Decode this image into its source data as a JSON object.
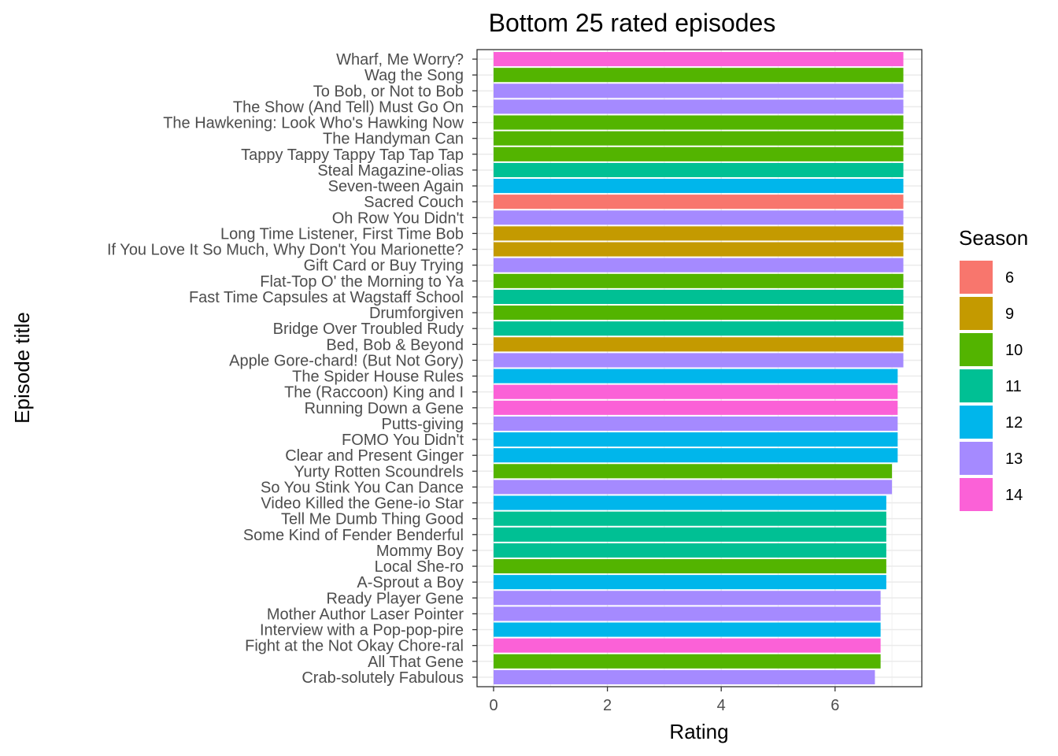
{
  "chart_data": {
    "type": "bar",
    "orientation": "horizontal",
    "title": "Bottom 25 rated episodes",
    "xlabel": "Rating",
    "ylabel": "Episode title",
    "xlim": [
      0,
      7.5
    ],
    "x_ticks": [
      0,
      2,
      4,
      6
    ],
    "grid": true,
    "legend": {
      "title": "Season",
      "position": "right",
      "entries": [
        {
          "label": "6",
          "color": "#F8766D"
        },
        {
          "label": "9",
          "color": "#C49A00"
        },
        {
          "label": "10",
          "color": "#53B400"
        },
        {
          "label": "11",
          "color": "#00C094"
        },
        {
          "label": "12",
          "color": "#00B6EB"
        },
        {
          "label": "13",
          "color": "#A58AFF"
        },
        {
          "label": "14",
          "color": "#FB61D7"
        }
      ]
    },
    "bars": [
      {
        "title": "Wharf, Me Worry?",
        "rating": 7.2,
        "season": "14"
      },
      {
        "title": "Wag the Song",
        "rating": 7.2,
        "season": "10"
      },
      {
        "title": "To Bob, or Not to Bob",
        "rating": 7.2,
        "season": "13"
      },
      {
        "title": "The Show (And Tell) Must Go On",
        "rating": 7.2,
        "season": "13"
      },
      {
        "title": "The Hawkening: Look Who's Hawking Now",
        "rating": 7.2,
        "season": "10"
      },
      {
        "title": "The Handyman Can",
        "rating": 7.2,
        "season": "10"
      },
      {
        "title": "Tappy Tappy Tappy Tap Tap Tap",
        "rating": 7.2,
        "season": "10"
      },
      {
        "title": "Steal Magazine-olias",
        "rating": 7.2,
        "season": "11"
      },
      {
        "title": "Seven-tween Again",
        "rating": 7.2,
        "season": "12"
      },
      {
        "title": "Sacred Couch",
        "rating": 7.2,
        "season": "6"
      },
      {
        "title": "Oh Row You Didn't",
        "rating": 7.2,
        "season": "13"
      },
      {
        "title": "Long Time Listener, First Time Bob",
        "rating": 7.2,
        "season": "9"
      },
      {
        "title": "If You Love It So Much, Why Don't You Marionette?",
        "rating": 7.2,
        "season": "9"
      },
      {
        "title": "Gift Card or Buy Trying",
        "rating": 7.2,
        "season": "13"
      },
      {
        "title": "Flat-Top O' the Morning to Ya",
        "rating": 7.2,
        "season": "10"
      },
      {
        "title": "Fast Time Capsules at Wagstaff School",
        "rating": 7.2,
        "season": "11"
      },
      {
        "title": "Drumforgiven",
        "rating": 7.2,
        "season": "10"
      },
      {
        "title": "Bridge Over Troubled Rudy",
        "rating": 7.2,
        "season": "11"
      },
      {
        "title": "Bed, Bob & Beyond",
        "rating": 7.2,
        "season": "9"
      },
      {
        "title": "Apple Gore-chard! (But Not Gory)",
        "rating": 7.2,
        "season": "13"
      },
      {
        "title": "The Spider House Rules",
        "rating": 7.1,
        "season": "12"
      },
      {
        "title": "The (Raccoon) King and I",
        "rating": 7.1,
        "season": "14"
      },
      {
        "title": "Running Down a Gene",
        "rating": 7.1,
        "season": "14"
      },
      {
        "title": "Putts-giving",
        "rating": 7.1,
        "season": "13"
      },
      {
        "title": "FOMO You Didn't",
        "rating": 7.1,
        "season": "12"
      },
      {
        "title": "Clear and Present Ginger",
        "rating": 7.1,
        "season": "12"
      },
      {
        "title": "Yurty Rotten Scoundrels",
        "rating": 7.0,
        "season": "10"
      },
      {
        "title": "So You Stink You Can Dance",
        "rating": 7.0,
        "season": "13"
      },
      {
        "title": "Video Killed the Gene-io Star",
        "rating": 6.9,
        "season": "12"
      },
      {
        "title": "Tell Me Dumb Thing Good",
        "rating": 6.9,
        "season": "11"
      },
      {
        "title": "Some Kind of Fender Benderful",
        "rating": 6.9,
        "season": "11"
      },
      {
        "title": "Mommy Boy",
        "rating": 6.9,
        "season": "11"
      },
      {
        "title": "Local She-ro",
        "rating": 6.9,
        "season": "10"
      },
      {
        "title": "A-Sprout a Boy",
        "rating": 6.9,
        "season": "12"
      },
      {
        "title": "Ready Player Gene",
        "rating": 6.8,
        "season": "13"
      },
      {
        "title": "Mother Author Laser Pointer",
        "rating": 6.8,
        "season": "13"
      },
      {
        "title": "Interview with a Pop-pop-pire",
        "rating": 6.8,
        "season": "12"
      },
      {
        "title": "Fight at the Not Okay Chore-ral",
        "rating": 6.8,
        "season": "14"
      },
      {
        "title": "All That Gene",
        "rating": 6.8,
        "season": "10"
      },
      {
        "title": "Crab-solutely Fabulous",
        "rating": 6.7,
        "season": "13"
      }
    ]
  }
}
